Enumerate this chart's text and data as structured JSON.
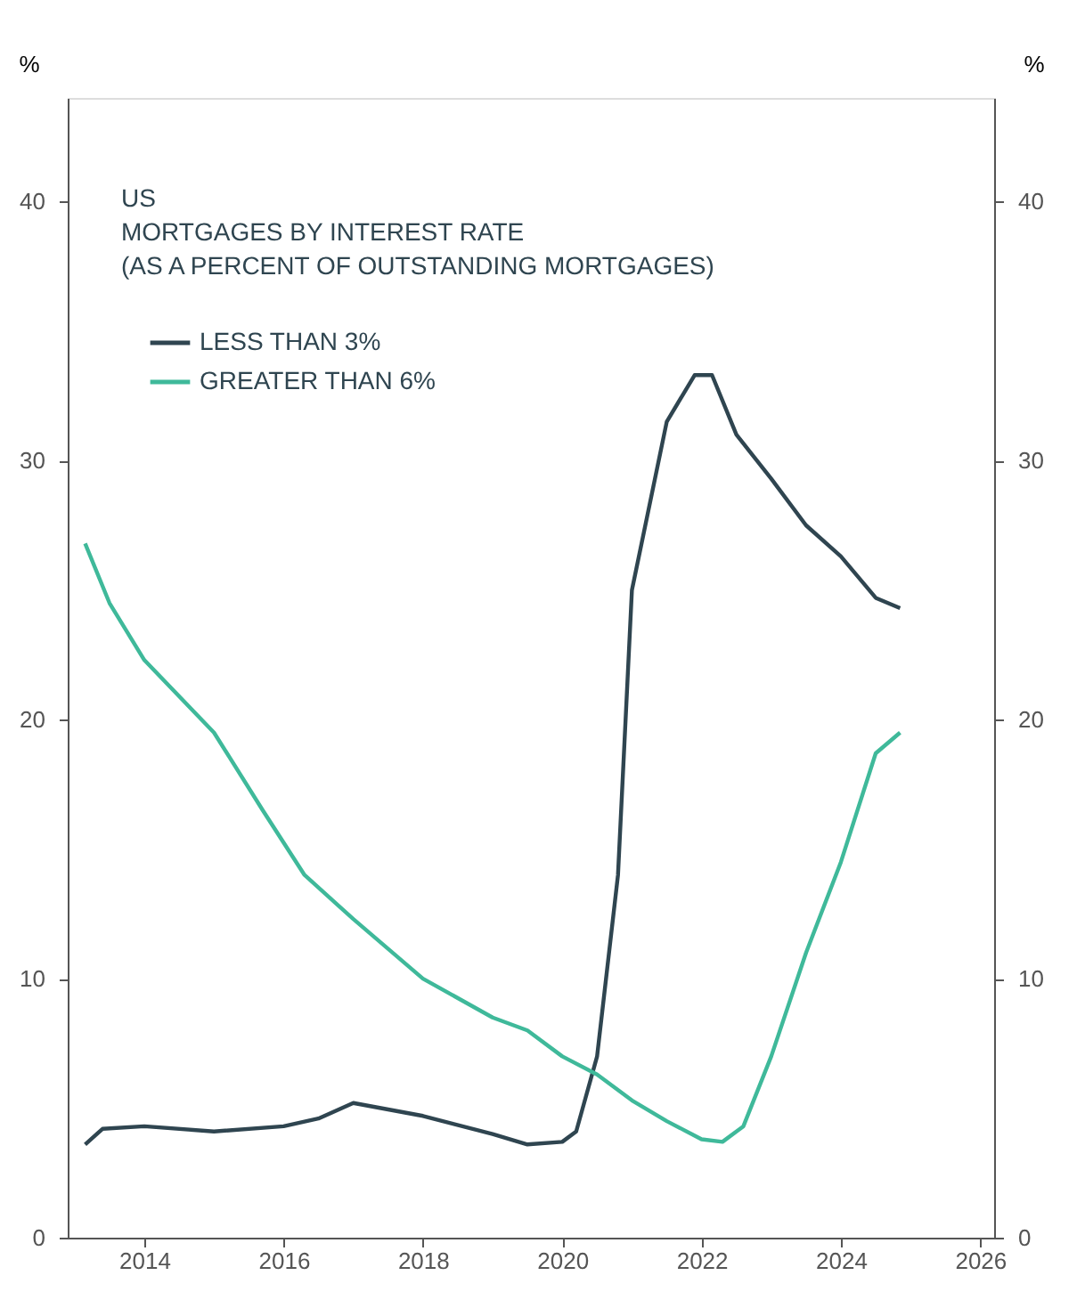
{
  "chart_data": {
    "type": "line",
    "title": "US",
    "subtitle": "MORTGAGES BY INTEREST RATE\n(AS A PERCENT OF OUTSTANDING MORTGAGES)",
    "ylabel": "%",
    "y2label": "%",
    "xlim": [
      2012.9,
      2026.2
    ],
    "xticks": [
      2014,
      2016,
      2018,
      2020,
      2022,
      2024,
      2026
    ],
    "ylim": [
      0,
      44
    ],
    "yticks": [
      0,
      10,
      20,
      30,
      40
    ],
    "y2lim": [
      0,
      44
    ],
    "y2ticks": [
      0,
      10,
      20,
      30,
      40
    ],
    "grid": false,
    "legend": "top left",
    "line_style": "solid",
    "marker": "none",
    "series": [
      {
        "name": "LESS THAN 3%",
        "color": "#2f4550",
        "x": [
          2013.15,
          2013.4,
          2014,
          2015,
          2016,
          2016.5,
          2017,
          2018,
          2019,
          2019.5,
          2020,
          2020.2,
          2020.5,
          2020.8,
          2021,
          2021.5,
          2021.9,
          2022.15,
          2022.5,
          2023,
          2023.5,
          2024,
          2024.5,
          2024.85
        ],
        "values": [
          3.6,
          4.2,
          4.3,
          4.1,
          4.3,
          4.6,
          5.2,
          4.7,
          4.0,
          3.6,
          3.7,
          4.1,
          7,
          14,
          25,
          31.5,
          33.3,
          33.3,
          31,
          29.3,
          27.5,
          26.3,
          24.7,
          24.3
        ]
      },
      {
        "name": "GREATER THAN 6%",
        "color": "#3fb99a",
        "x": [
          2013.15,
          2013.5,
          2014,
          2015,
          2015.7,
          2016.3,
          2017,
          2018,
          2019,
          2019.5,
          2020,
          2020.5,
          2021,
          2021.5,
          2022,
          2022.3,
          2022.6,
          2023,
          2023.5,
          2024,
          2024.5,
          2024.85
        ],
        "values": [
          26.8,
          24.5,
          22.3,
          19.5,
          16.5,
          14,
          12.3,
          10,
          8.5,
          8,
          7,
          6.3,
          5.3,
          4.5,
          3.8,
          3.7,
          4.3,
          7,
          11,
          14.5,
          18.7,
          19.5
        ]
      }
    ]
  }
}
